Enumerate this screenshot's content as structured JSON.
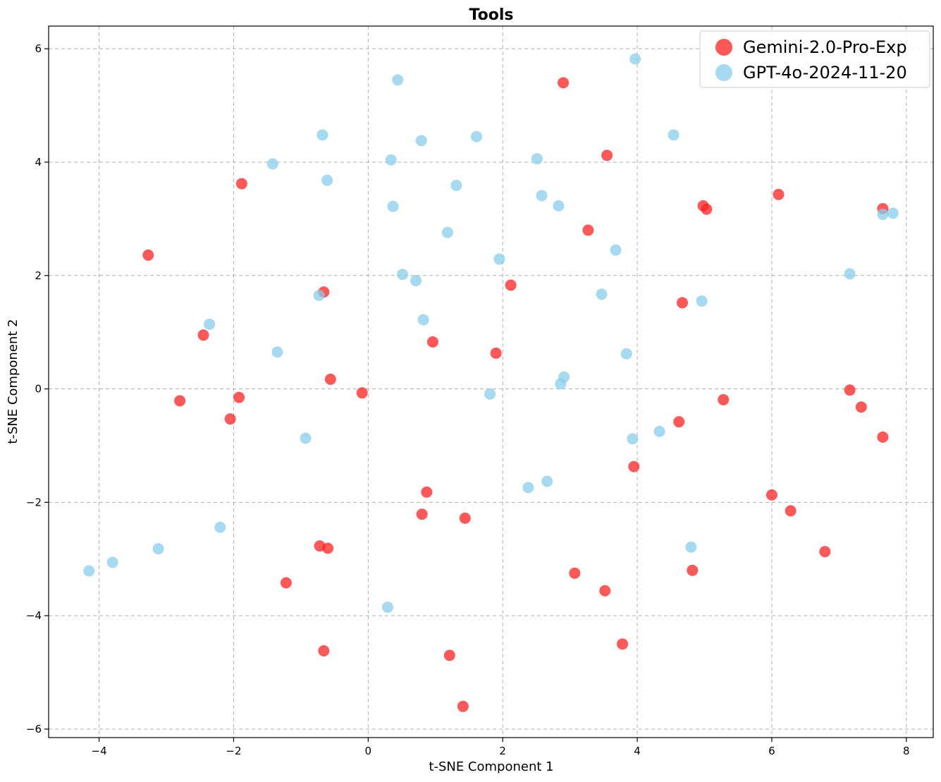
{
  "chart_data": {
    "type": "scatter",
    "title": "Tools",
    "xlabel": "t-SNE Component 1",
    "ylabel": "t-SNE Component 2",
    "xlim": [
      -4.75,
      8.4
    ],
    "ylim": [
      -6.15,
      6.4
    ],
    "xticks": [
      -4,
      -2,
      0,
      2,
      4,
      6,
      8
    ],
    "yticks": [
      -6,
      -4,
      -2,
      0,
      2,
      4,
      6
    ],
    "xtick_labels": [
      "−4",
      "−2",
      "0",
      "2",
      "4",
      "6",
      "8"
    ],
    "ytick_labels": [
      "−6",
      "−4",
      "−2",
      "0",
      "2",
      "4",
      "6"
    ],
    "grid": true,
    "legend_position": "top-right",
    "series": [
      {
        "name": "Gemini-2.0-Pro-Exp",
        "color": "#ff2020",
        "x": [
          -1.88,
          -3.27,
          -0.66,
          -2.45,
          -2.8,
          -1.92,
          -2.05,
          -0.56,
          -0.09,
          0.96,
          1.9,
          2.12,
          2.9,
          3.55,
          3.27,
          4.98,
          5.03,
          6.1,
          7.65,
          4.67,
          7.16,
          7.33,
          7.65,
          5.28,
          4.62,
          3.95,
          6.0,
          6.28,
          6.79,
          4.82,
          3.07,
          3.52,
          3.78,
          0.87,
          0.8,
          1.44,
          -0.72,
          -0.6,
          -1.22,
          -0.66,
          1.21,
          1.41
        ],
        "y": [
          3.62,
          2.36,
          1.71,
          0.95,
          -0.21,
          -0.15,
          -0.53,
          0.17,
          -0.07,
          0.83,
          0.63,
          1.83,
          5.4,
          4.12,
          2.8,
          3.23,
          3.17,
          3.43,
          3.18,
          1.52,
          -0.02,
          -0.32,
          -0.85,
          -0.19,
          -0.58,
          -1.37,
          -1.87,
          -2.15,
          -2.87,
          -3.2,
          -3.25,
          -3.56,
          -4.5,
          -1.82,
          -2.21,
          -2.28,
          -2.77,
          -2.81,
          -3.42,
          -4.62,
          -4.7,
          -5.6
        ]
      },
      {
        "name": "GPT-4o-2024-11-20",
        "color": "#87ceeb",
        "x": [
          0.44,
          3.97,
          -0.68,
          0.34,
          0.79,
          1.61,
          2.51,
          4.54,
          -1.42,
          -0.61,
          1.31,
          2.58,
          2.83,
          0.37,
          1.18,
          3.68,
          1.95,
          0.51,
          0.71,
          -0.73,
          0.82,
          3.47,
          4.96,
          7.16,
          7.8,
          7.65,
          -2.36,
          -1.35,
          3.84,
          2.91,
          2.86,
          1.81,
          3.93,
          4.33,
          -0.93,
          2.66,
          2.38,
          4.8,
          -2.2,
          -3.12,
          -3.8,
          -4.15,
          0.29
        ],
        "y": [
          5.45,
          5.82,
          4.48,
          4.04,
          4.38,
          4.45,
          4.06,
          4.48,
          3.97,
          3.68,
          3.59,
          3.41,
          3.23,
          3.22,
          2.76,
          2.45,
          2.29,
          2.02,
          1.91,
          1.65,
          1.22,
          1.67,
          1.55,
          2.03,
          3.1,
          3.08,
          1.14,
          0.65,
          0.62,
          0.21,
          0.09,
          -0.09,
          -0.88,
          -0.75,
          -0.87,
          -1.63,
          -1.74,
          -2.79,
          -2.44,
          -2.82,
          -3.06,
          -3.21,
          -3.85
        ]
      }
    ]
  }
}
